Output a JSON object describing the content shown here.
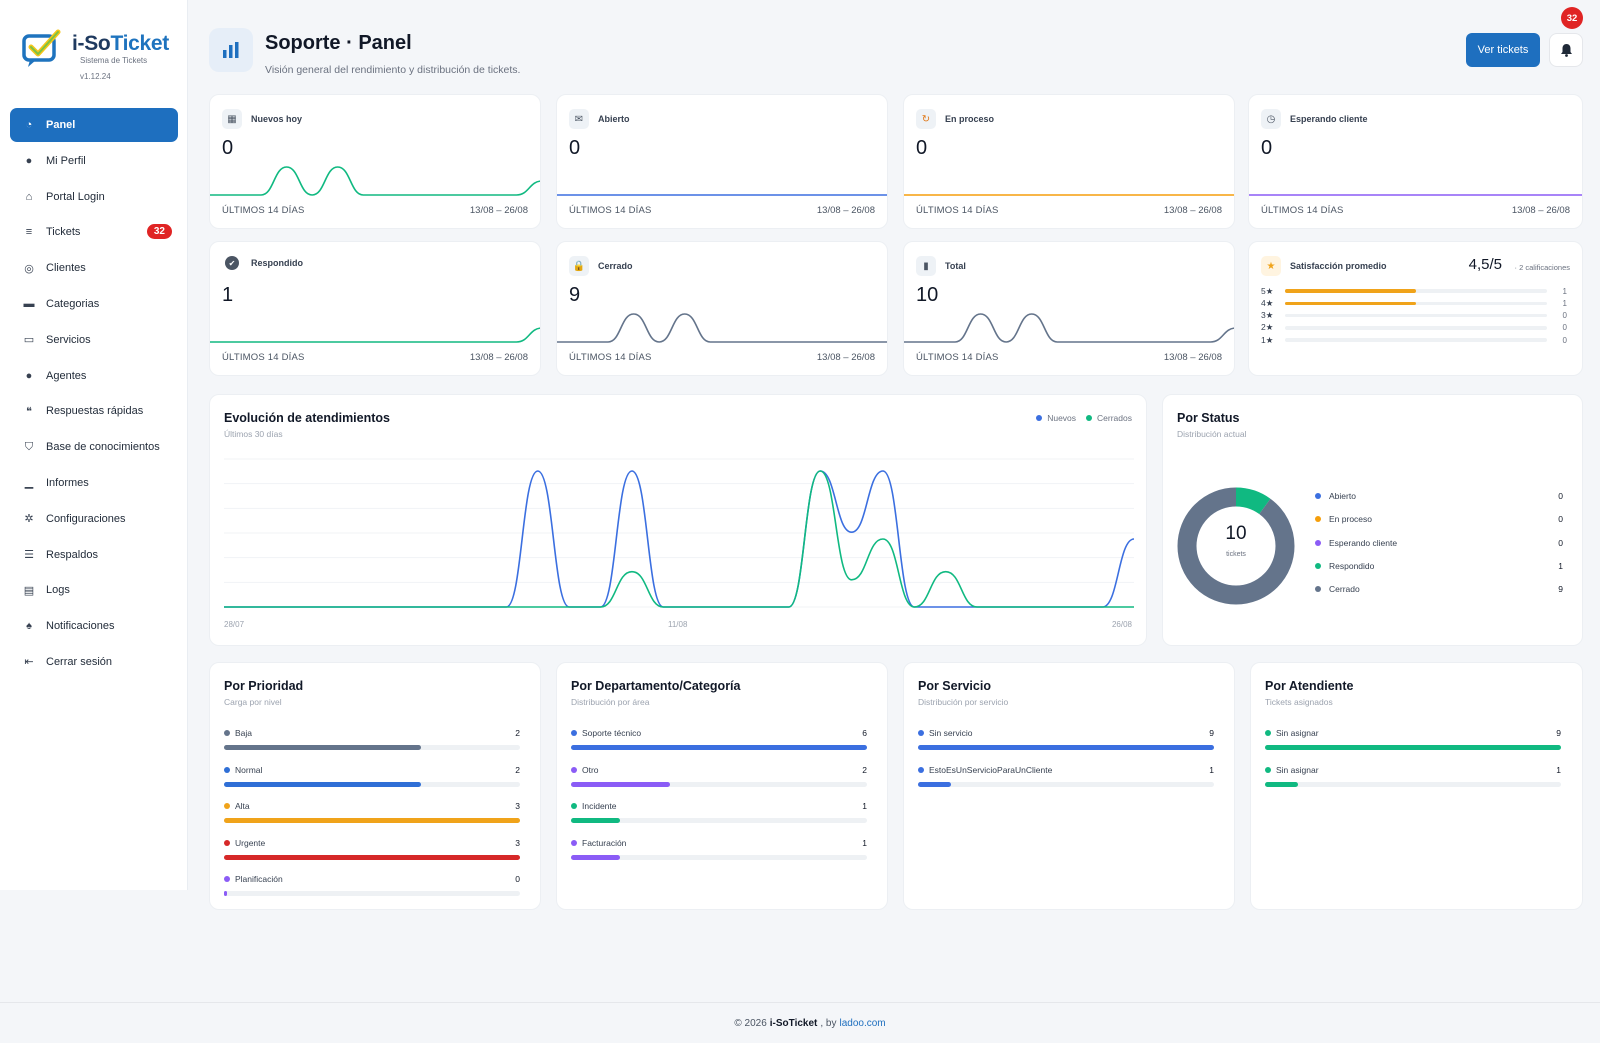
{
  "brand": {
    "name_a": "i-So",
    "name_b": "Ticket",
    "subtitle": "Sistema de Tickets",
    "version": "v1.12.24"
  },
  "sidebar": {
    "items": [
      {
        "label": "Panel",
        "icon": "gauge-icon",
        "active": true
      },
      {
        "label": "Mi Perfil",
        "icon": "user-icon"
      },
      {
        "label": "Portal Login",
        "icon": "home-icon"
      },
      {
        "label": "Tickets",
        "icon": "tickets-icon",
        "badge": "32"
      },
      {
        "label": "Clientes",
        "icon": "globe-icon"
      },
      {
        "label": "Categorias",
        "icon": "folder-icon"
      },
      {
        "label": "Servicios",
        "icon": "folder-open-icon"
      },
      {
        "label": "Agentes",
        "icon": "agent-icon"
      },
      {
        "label": "Respuestas rápidas",
        "icon": "quote-icon"
      },
      {
        "label": "Base de conocimientos",
        "icon": "graduation-icon"
      },
      {
        "label": "Informes",
        "icon": "chart-icon"
      },
      {
        "label": "Configuraciones",
        "icon": "gear-icon"
      },
      {
        "label": "Respaldos",
        "icon": "database-icon"
      },
      {
        "label": "Logs",
        "icon": "file-icon"
      },
      {
        "label": "Notificaciones",
        "icon": "bell-icon"
      },
      {
        "label": "Cerrar sesión",
        "icon": "logout-icon"
      }
    ]
  },
  "header": {
    "title": "Soporte · Panel",
    "subtitle": "Visión general del rendimiento y distribución de tickets.",
    "btn_tickets": "Ver tickets",
    "notif_count": "32"
  },
  "stats": [
    {
      "label": "Nuevos hoy",
      "value": "0",
      "icon": "calendar-icon",
      "color": "#10b981",
      "foot_l": "ÚLTIMOS 14 DÍAS",
      "foot_r": "13/08 – 26/08",
      "series": [
        0,
        0,
        0,
        2,
        0,
        2,
        0,
        0,
        0,
        0,
        0,
        0,
        0,
        1
      ]
    },
    {
      "label": "Abierto",
      "value": "0",
      "icon": "envelope-icon",
      "color": "#3b6fe0",
      "foot_l": "ÚLTIMOS 14 DÍAS",
      "foot_r": "13/08 – 26/08",
      "series": [
        0,
        0,
        0,
        0,
        0,
        0,
        0,
        0,
        0,
        0,
        0,
        0,
        0,
        0
      ]
    },
    {
      "label": "En proceso",
      "value": "0",
      "icon": "refresh-icon",
      "color": "#f59e0b",
      "foot_l": "ÚLTIMOS 14 DÍAS",
      "foot_r": "13/08 – 26/08",
      "series": [
        0,
        0,
        0,
        0,
        0,
        0,
        0,
        0,
        0,
        0,
        0,
        0,
        0,
        0
      ]
    },
    {
      "label": "Esperando cliente",
      "value": "0",
      "icon": "clock-icon",
      "color": "#8b5cf6",
      "foot_l": "ÚLTIMOS 14 DÍAS",
      "foot_r": "13/08 – 26/08",
      "series": [
        0,
        0,
        0,
        0,
        0,
        0,
        0,
        0,
        0,
        0,
        0,
        0,
        0,
        0
      ]
    },
    {
      "label": "Respondido",
      "value": "1",
      "icon": "check-circle-icon",
      "color": "#10b981",
      "foot_l": "ÚLTIMOS 14 DÍAS",
      "foot_r": "13/08 – 26/08",
      "series": [
        0,
        0,
        0,
        0,
        0,
        0,
        0,
        0,
        0,
        0,
        0,
        0,
        0,
        1
      ]
    },
    {
      "label": "Cerrado",
      "value": "9",
      "icon": "lock-icon",
      "color": "#64748b",
      "foot_l": "ÚLTIMOS 14 DÍAS",
      "foot_r": "13/08 – 26/08",
      "series": [
        0,
        0,
        0,
        2,
        0,
        2,
        0,
        0,
        0,
        0,
        0,
        0,
        0,
        0
      ]
    },
    {
      "label": "Total",
      "value": "10",
      "icon": "bar-chart-icon",
      "color": "#64748b",
      "foot_l": "ÚLTIMOS 14 DÍAS",
      "foot_r": "13/08 – 26/08",
      "series": [
        0,
        0,
        0,
        2,
        0,
        2,
        0,
        0,
        0,
        0,
        0,
        0,
        0,
        1
      ]
    }
  ],
  "satisfaction": {
    "label": "Satisfacción promedio",
    "icon": "star-icon",
    "value": "4,5/5",
    "count": "· 2 calificaciones",
    "rows": [
      {
        "label": "5★",
        "value": 1,
        "num": "1"
      },
      {
        "label": "4★",
        "value": 1,
        "num": "1"
      },
      {
        "label": "3★",
        "value": 0,
        "num": "0"
      },
      {
        "label": "2★",
        "value": 0,
        "num": "0"
      },
      {
        "label": "1★",
        "value": 0,
        "num": "0"
      }
    ],
    "max": 2
  },
  "evolution": {
    "title": "Evolución de atendimientos",
    "subtitle": "Últimos 30 días",
    "legend_new": "Nuevos",
    "legend_closed": "Cerrados",
    "x_start": "28/07",
    "x_mid": "11/08",
    "x_end": "26/08"
  },
  "status": {
    "title": "Por Status",
    "subtitle": "Distribución actual",
    "total": "10",
    "total_label": "tickets",
    "items": [
      {
        "label": "Abierto",
        "value": 0,
        "num": "0",
        "color": "#3b6fe0"
      },
      {
        "label": "En proceso",
        "value": 0,
        "num": "0",
        "color": "#f59e0b"
      },
      {
        "label": "Esperando cliente",
        "value": 0,
        "num": "0",
        "color": "#8b5cf6"
      },
      {
        "label": "Respondido",
        "value": 1,
        "num": "1",
        "color": "#10b981"
      },
      {
        "label": "Cerrado",
        "value": 9,
        "num": "9",
        "color": "#64748b"
      }
    ]
  },
  "priority": {
    "title": "Por Prioridad",
    "subtitle": "Carga por nivel",
    "max": 3,
    "items": [
      {
        "label": "Baja",
        "value": 2,
        "num": "2",
        "color": "#64748b"
      },
      {
        "label": "Normal",
        "value": 2,
        "num": "2",
        "color": "#2f6fd6"
      },
      {
        "label": "Alta",
        "value": 3,
        "num": "3",
        "color": "#f0a31a"
      },
      {
        "label": "Urgente",
        "value": 3,
        "num": "3",
        "color": "#d62828"
      },
      {
        "label": "Planificación",
        "value": 0,
        "num": "0",
        "color": "#8b5cf6"
      }
    ]
  },
  "department": {
    "title": "Por Departamento/Categoría",
    "subtitle": "Distribución por área",
    "max": 6,
    "items": [
      {
        "label": "Soporte técnico",
        "value": 6,
        "num": "6",
        "color": "#3b6fe0"
      },
      {
        "label": "Otro",
        "value": 2,
        "num": "2",
        "color": "#8b5cf6"
      },
      {
        "label": "Incidente",
        "value": 1,
        "num": "1",
        "color": "#10b981"
      },
      {
        "label": "Facturación",
        "value": 1,
        "num": "1",
        "color": "#8b5cf6"
      }
    ]
  },
  "service": {
    "title": "Por Servicio",
    "subtitle": "Distribución por servicio",
    "max": 9,
    "items": [
      {
        "label": "Sin servicio",
        "value": 9,
        "num": "9",
        "color": "#3b6fe0"
      },
      {
        "label": "EstoEsUnServicioParaUnCliente",
        "value": 1,
        "num": "1",
        "color": "#3b6fe0"
      }
    ]
  },
  "attendant": {
    "title": "Por Atendiente",
    "subtitle": "Tickets asignados",
    "max": 9,
    "items": [
      {
        "label": "Sin asignar",
        "value": 9,
        "num": "9",
        "color": "#10b981"
      },
      {
        "label": "Sin asignar",
        "value": 1,
        "num": "1",
        "color": "#10b981"
      }
    ]
  },
  "footer": {
    "prefix": "© 2026",
    "brand": "i-SoTicket",
    "by": ", by",
    "link": "ladoo.com"
  }
}
